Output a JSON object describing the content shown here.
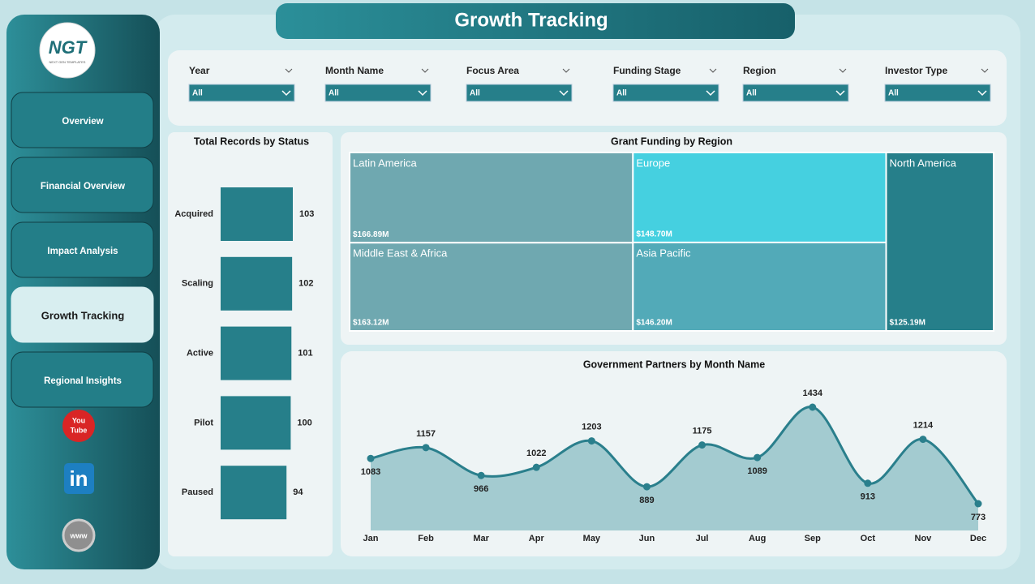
{
  "title": "Growth Tracking",
  "logo": {
    "mark": "NGT",
    "tagline": "NEXT GEN TEMPLATES"
  },
  "nav": [
    {
      "label": "Overview",
      "active": false
    },
    {
      "label": "Financial Overview",
      "active": false
    },
    {
      "label": "Impact Analysis",
      "active": false
    },
    {
      "label": "Growth Tracking",
      "active": true
    },
    {
      "label": "Regional Insights",
      "active": false
    }
  ],
  "social": {
    "youtube": [
      "You",
      "Tube"
    ],
    "linkedin": "in",
    "web": "www"
  },
  "filters": [
    {
      "label": "Year",
      "value": "All"
    },
    {
      "label": "Month Name",
      "value": "All"
    },
    {
      "label": "Focus Area",
      "value": "All"
    },
    {
      "label": "Funding Stage",
      "value": "All"
    },
    {
      "label": "Region",
      "value": "All"
    },
    {
      "label": "Investor Type",
      "value": "All"
    }
  ],
  "chart_data": [
    {
      "type": "bar",
      "orientation": "horizontal",
      "title": "Total Records by Status",
      "categories": [
        "Acquired",
        "Scaling",
        "Active",
        "Pilot",
        "Paused"
      ],
      "values": [
        103,
        102,
        101,
        100,
        94
      ],
      "color": "#267f8a"
    },
    {
      "type": "treemap",
      "title": "Grant Funding by Region",
      "categories": [
        "Latin America",
        "Europe",
        "Middle East & Africa",
        "Asia Pacific",
        "North America"
      ],
      "values": [
        166890000,
        148700000,
        163120000,
        146200000,
        125190000
      ],
      "value_labels": [
        "$166.89M",
        "$148.70M",
        "$163.12M",
        "$146.20M",
        "$125.19M"
      ],
      "colors": [
        "#6fa8b0",
        "#45d0e0",
        "#6fa8b0",
        "#52aab8",
        "#267f8a"
      ]
    },
    {
      "type": "line",
      "title": "Government Partners by Month Name",
      "categories": [
        "Jan",
        "Feb",
        "Mar",
        "Apr",
        "May",
        "Jun",
        "Jul",
        "Aug",
        "Sep",
        "Oct",
        "Nov",
        "Dec"
      ],
      "values": [
        1083,
        1157,
        966,
        1022,
        1203,
        889,
        1175,
        1089,
        1434,
        913,
        1214,
        773
      ],
      "color": "#2a7f8c",
      "area": true
    }
  ]
}
